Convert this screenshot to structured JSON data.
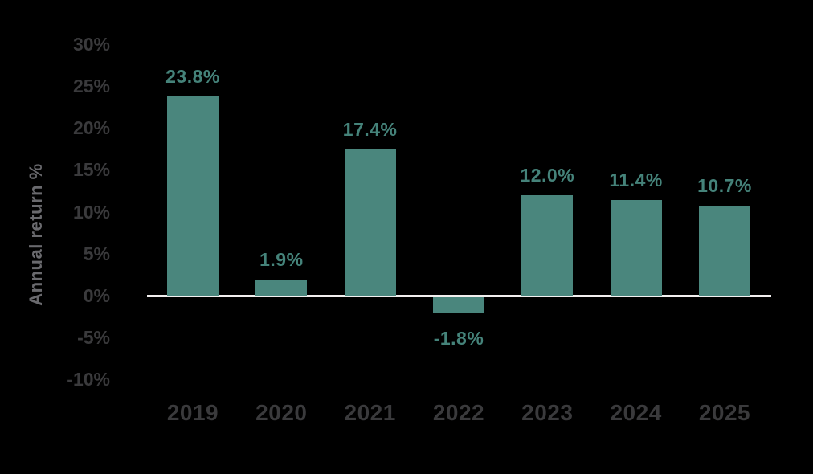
{
  "colors": {
    "background": "#000000",
    "bar": "#4A867D",
    "value_label": "#45837A",
    "tick_label": "#3A3A3C",
    "axis_title": "#6A6A6E",
    "zero_line": "#F2EFEF"
  },
  "chart_data": {
    "type": "bar",
    "title": "",
    "xlabel": "",
    "ylabel": "Annual return %",
    "categories": [
      "2019",
      "2020",
      "2021",
      "2022",
      "2023",
      "2024",
      "2025"
    ],
    "values": [
      23.8,
      1.9,
      17.4,
      -1.8,
      12.0,
      11.4,
      10.7
    ],
    "value_labels": [
      "23.8%",
      "1.9%",
      "17.4%",
      "-1.8%",
      "12.0%",
      "11.4%",
      "10.7%"
    ],
    "yticks": {
      "values": [
        30,
        25,
        20,
        15,
        10,
        5,
        0,
        -5,
        -10
      ],
      "labels": [
        "30%",
        "25%",
        "20%",
        "15%",
        "10%",
        "5%",
        "0%",
        "-5%",
        "-10%"
      ]
    },
    "ylim": [
      -10,
      30
    ],
    "grid": false,
    "legend": false,
    "zero_line": true
  }
}
